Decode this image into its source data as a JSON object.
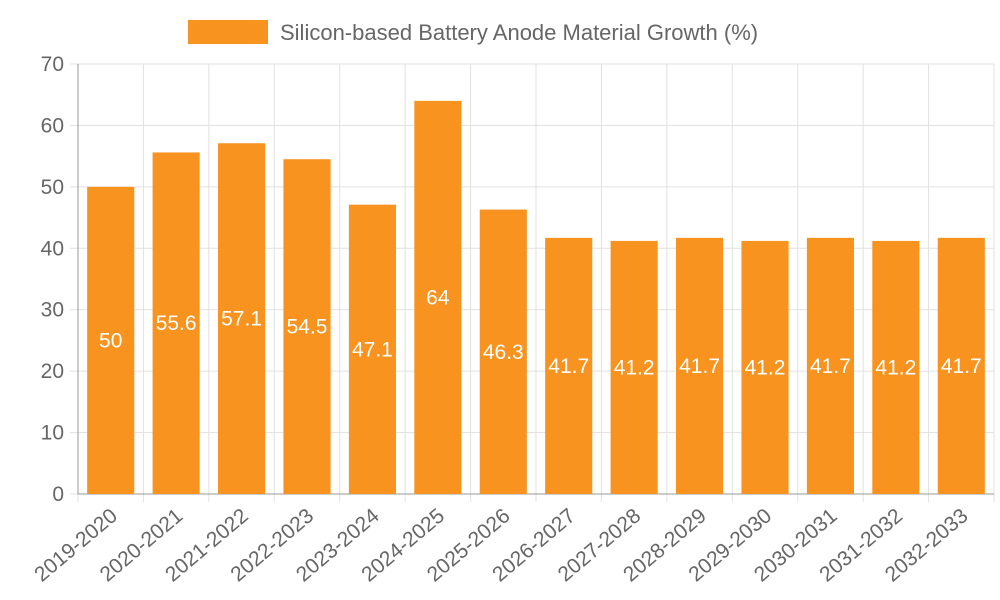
{
  "chart_data": {
    "type": "bar",
    "legend": {
      "label": "Silicon-based Battery Anode Material Growth (%)",
      "placement": "top-center"
    },
    "categories": [
      "2019-2020",
      "2020-2021",
      "2021-2022",
      "2022-2023",
      "2023-2024",
      "2024-2025",
      "2025-2026",
      "2026-2027",
      "2027-2028",
      "2028-2029",
      "2029-2030",
      "2030-2031",
      "2031-2032",
      "2032-2033"
    ],
    "values": [
      50,
      55.6,
      57.1,
      54.5,
      47.1,
      64,
      46.3,
      41.7,
      41.2,
      41.7,
      41.2,
      41.7,
      41.2,
      41.7
    ],
    "ylim": [
      0,
      70
    ],
    "yticks": [
      0,
      10,
      20,
      30,
      40,
      50,
      60,
      70
    ],
    "grid": true,
    "colors": {
      "bar": "#f7931e",
      "grid": "#e1e1e1",
      "axis": "#999999",
      "text": "#666666",
      "label": "#ffffff"
    }
  }
}
